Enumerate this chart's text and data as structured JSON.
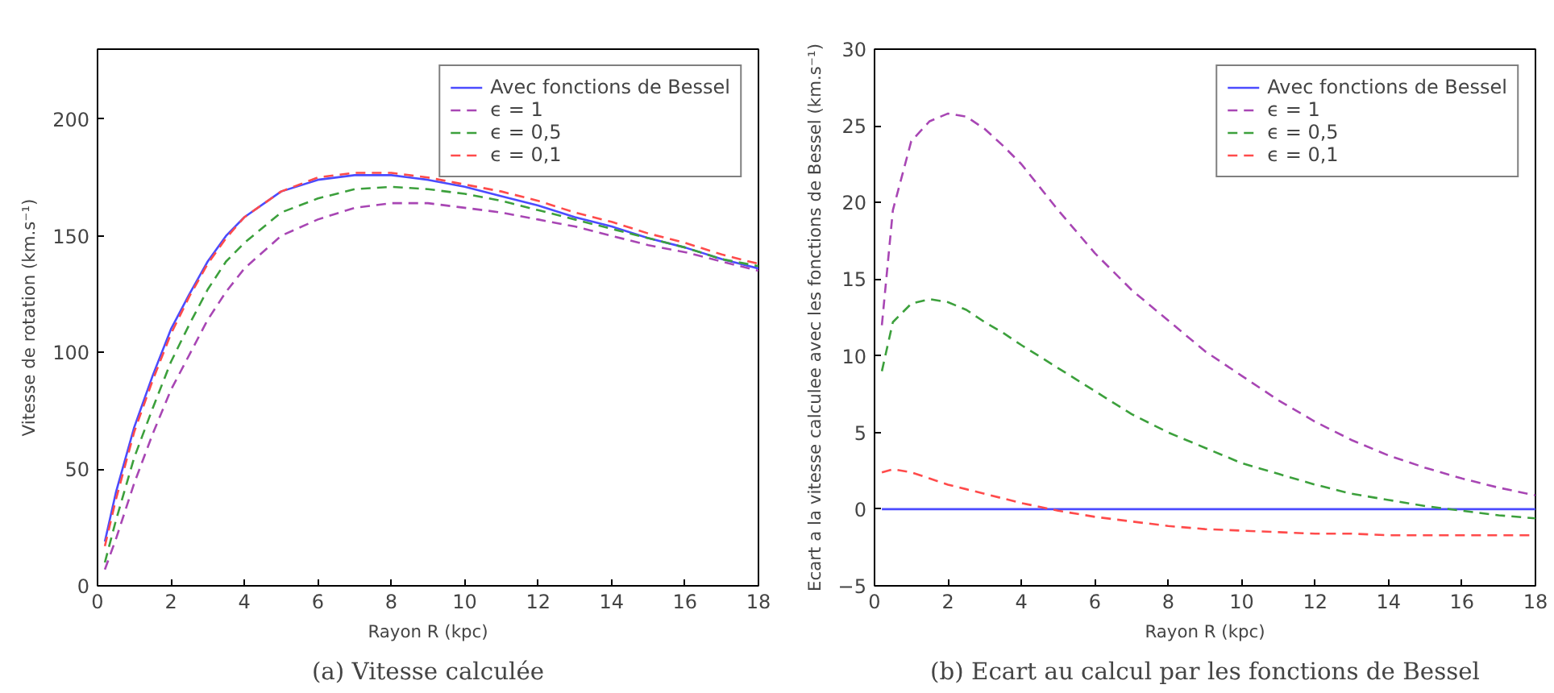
{
  "chart_data": [
    {
      "type": "line",
      "xlabel": "Rayon R (kpc)",
      "ylabel": "Vitesse de rotation (km.s⁻¹)",
      "annotations": [
        "(a) Vitesse calculée"
      ],
      "xlim": [
        0,
        18
      ],
      "ylim": [
        0,
        230
      ],
      "xticks": [
        0,
        2,
        4,
        6,
        8,
        10,
        12,
        14,
        16,
        18
      ],
      "yticks": [
        0,
        50,
        100,
        150,
        200
      ],
      "grid": false,
      "legend": "top right",
      "x": [
        0.2,
        0.5,
        1,
        1.5,
        2,
        2.5,
        3,
        3.5,
        4,
        5,
        6,
        7,
        8,
        9,
        10,
        11,
        12,
        13,
        14,
        15,
        16,
        17,
        18
      ],
      "series": [
        {
          "name": "Avec fonctions de Bessel",
          "color": "#4b4bff",
          "line_style": "solid",
          "values": [
            19,
            40,
            68,
            90,
            110,
            125,
            139,
            150,
            158,
            169,
            174,
            176,
            176,
            174,
            171,
            167,
            163,
            158,
            154,
            149,
            145,
            140,
            136
          ]
        },
        {
          "name": "ϵ = 1",
          "color": "#a846b4",
          "line_style": "dashed",
          "values": [
            7,
            20,
            44,
            65,
            84,
            99,
            114,
            126,
            136,
            150,
            157,
            162,
            164,
            164,
            162,
            160,
            157,
            154,
            150,
            146,
            143,
            139,
            135
          ]
        },
        {
          "name": "ϵ = 0,5",
          "color": "#3ca03c",
          "line_style": "dashed",
          "values": [
            10,
            28,
            55,
            76,
            96,
            112,
            127,
            139,
            147,
            160,
            166,
            170,
            171,
            170,
            168,
            165,
            161,
            157,
            153,
            149,
            145,
            140,
            137
          ]
        },
        {
          "name": "ϵ = 0,1",
          "color": "#ff4b4b",
          "line_style": "dashed",
          "values": [
            17,
            37,
            66,
            88,
            108,
            124,
            138,
            149,
            158,
            169,
            175,
            177,
            177,
            175,
            172,
            169,
            165,
            160,
            156,
            151,
            147,
            142,
            138
          ]
        }
      ]
    },
    {
      "type": "line",
      "xlabel": "Rayon R (kpc)",
      "ylabel": "Ecart a la vitesse calculee avec les fonctions de Bessel (km.s⁻¹)",
      "annotations": [
        "(b) Ecart au calcul par les fonctions de Bessel"
      ],
      "xlim": [
        0,
        18
      ],
      "ylim": [
        -5,
        30
      ],
      "xticks": [
        0,
        2,
        4,
        6,
        8,
        10,
        12,
        14,
        16,
        18
      ],
      "yticks": [
        -5,
        0,
        5,
        10,
        15,
        20,
        25,
        30
      ],
      "grid": false,
      "legend": "top right",
      "x": [
        0.2,
        0.5,
        1,
        1.5,
        2,
        2.5,
        3,
        3.5,
        4,
        5,
        6,
        7,
        8,
        9,
        10,
        11,
        12,
        13,
        14,
        15,
        16,
        17,
        18
      ],
      "series": [
        {
          "name": "Avec fonctions de Bessel",
          "color": "#4b4bff",
          "line_style": "solid",
          "values": [
            0,
            0,
            0,
            0,
            0,
            0,
            0,
            0,
            0,
            0,
            0,
            0,
            0,
            0,
            0,
            0,
            0,
            0,
            0,
            0,
            0,
            0,
            0
          ]
        },
        {
          "name": "ϵ = 1",
          "color": "#a846b4",
          "line_style": "dashed",
          "values": [
            12,
            19.5,
            24,
            25.3,
            25.8,
            25.6,
            24.8,
            23.7,
            22.5,
            19.5,
            16.7,
            14.3,
            12.3,
            10.3,
            8.7,
            7.1,
            5.7,
            4.5,
            3.5,
            2.7,
            2,
            1.4,
            0.9
          ]
        },
        {
          "name": "ϵ = 0,5",
          "color": "#3ca03c",
          "line_style": "dashed",
          "values": [
            9,
            12.2,
            13.4,
            13.7,
            13.5,
            13,
            12.2,
            11.5,
            10.7,
            9.2,
            7.7,
            6.2,
            5,
            4,
            3,
            2.3,
            1.6,
            1,
            0.6,
            0.2,
            -0.1,
            -0.4,
            -0.6
          ]
        },
        {
          "name": "ϵ = 0,1",
          "color": "#ff4b4b",
          "line_style": "dashed",
          "values": [
            2.4,
            2.6,
            2.4,
            2,
            1.6,
            1.3,
            1,
            0.7,
            0.4,
            -0.1,
            -0.5,
            -0.8,
            -1.1,
            -1.3,
            -1.4,
            -1.5,
            -1.6,
            -1.6,
            -1.7,
            -1.7,
            -1.7,
            -1.7,
            -1.7
          ]
        }
      ]
    }
  ]
}
